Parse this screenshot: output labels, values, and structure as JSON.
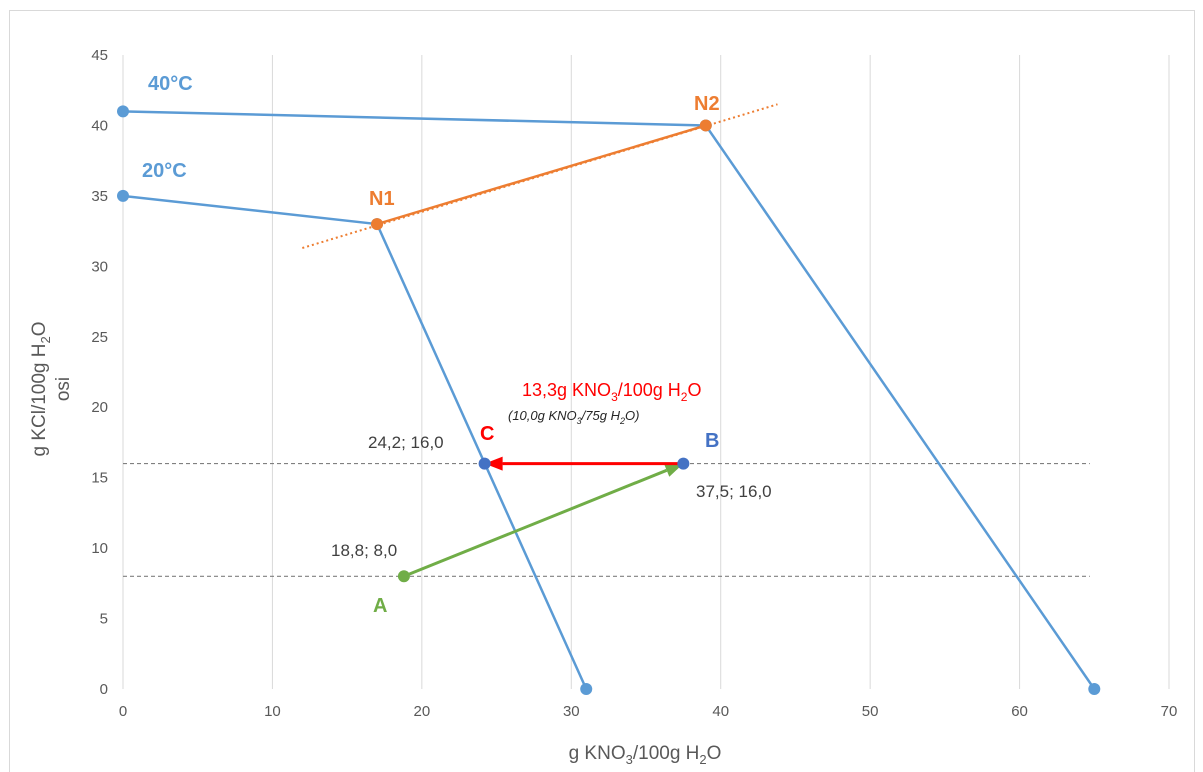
{
  "chart_data": {
    "type": "line",
    "xlabel": {
      "pre": "g KNO",
      "sub1": "3",
      "mid": "/100g H",
      "sub2": "2",
      "post": "O"
    },
    "ylabel": {
      "line1": {
        "pre": "g KCl/100g H",
        "sub": "2",
        "post": "O"
      },
      "line2": "osi"
    },
    "xlim": [
      0,
      70
    ],
    "ylim": [
      0,
      45
    ],
    "xticks": [
      "0",
      "10",
      "20",
      "30",
      "40",
      "50",
      "60",
      "70"
    ],
    "yticks": [
      "0",
      "5",
      "10",
      "15",
      "20",
      "25",
      "30",
      "35",
      "40",
      "45"
    ],
    "grid": "vertical",
    "series": [
      {
        "name": "40°C",
        "color": "#5b9bd5",
        "points": [
          [
            0,
            41
          ],
          [
            39,
            40
          ],
          [
            65,
            0
          ]
        ]
      },
      {
        "name": "20°C",
        "color": "#5b9bd5",
        "points": [
          [
            0,
            35
          ],
          [
            17,
            33
          ],
          [
            31,
            0
          ]
        ]
      },
      {
        "color": "#ed7d31",
        "points": [
          [
            17,
            33
          ],
          [
            39,
            40
          ]
        ]
      }
    ],
    "extension_line": {
      "color": "#ed7d31",
      "from": [
        12,
        31.3
      ],
      "to": [
        43.8,
        41.5
      ]
    },
    "reference_lines": [
      {
        "y": 16,
        "x_from": 0,
        "x_to": 64.7,
        "color": "#808080"
      },
      {
        "y": 8,
        "x_from": 0,
        "x_to": 64.7,
        "color": "#808080"
      }
    ],
    "arrows": [
      {
        "from": [
          18.8,
          8.0
        ],
        "to": [
          37.5,
          16.0
        ],
        "color": "#70ad47"
      },
      {
        "from": [
          37.5,
          16.0
        ],
        "to": [
          24.2,
          16.0
        ],
        "color": "#ff0000"
      }
    ],
    "points": [
      {
        "name": "A",
        "x": 18.8,
        "y": 8.0,
        "color": "#70ad47",
        "coord_label": "18,8; 8,0"
      },
      {
        "name": "B",
        "x": 37.5,
        "y": 16.0,
        "color": "#4472c4",
        "coord_label": "37,5; 16,0"
      },
      {
        "name": "C",
        "x": 24.2,
        "y": 16.0,
        "color": "#4472c4",
        "coord_label": "24,2; 16,0"
      },
      {
        "name": "N1",
        "x": 17,
        "y": 33,
        "color": "#ed7d31"
      },
      {
        "name": "N2",
        "x": 39,
        "y": 40,
        "color": "#ed7d31"
      }
    ],
    "annotations": {
      "main": {
        "pre": "13,3g KNO",
        "sub1": "3",
        "mid": "/100g H",
        "sub2": "2",
        "post": "O"
      },
      "sub": {
        "pre": "(10,0g KNO",
        "sub1": "3",
        "mid": "/75g H",
        "sub2": "2",
        "post": "O)"
      }
    }
  }
}
